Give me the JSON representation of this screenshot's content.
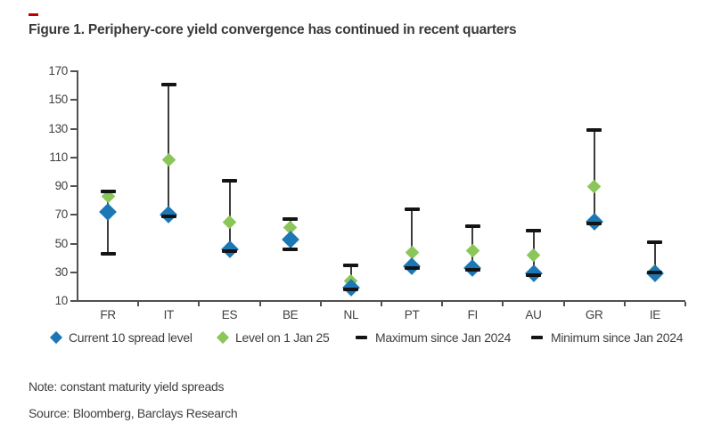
{
  "figure": {
    "brand_mark_color": "#c00000",
    "title": "Figure 1. Periphery-core yield convergence has continued in recent quarters",
    "note": "Note: constant maturity yield spreads",
    "source": "Source: Bloomberg, Barclays Research"
  },
  "colors": {
    "current_blue": "#1b78b5",
    "jan25_green": "#8bc65a",
    "range_black": "#141414",
    "axis_gray": "#515151",
    "text_gray": "#3f3f3f"
  },
  "legend": {
    "items": [
      {
        "label": "Current 10 spread level",
        "marker": "diamond",
        "color": "#1b78b5"
      },
      {
        "label": "Level on 1 Jan 25",
        "marker": "diamond",
        "color": "#8bc65a"
      },
      {
        "label": "Maximum since Jan 2024",
        "marker": "dash",
        "color": "#141414"
      },
      {
        "label": "Minimum since Jan 2024",
        "marker": "dash",
        "color": "#141414"
      }
    ]
  },
  "chart_data": {
    "type": "scatter",
    "subtype": "range-dot",
    "title": "Figure 1. Periphery-core yield convergence has continued in recent quarters",
    "categories": [
      "FR",
      "IT",
      "ES",
      "BE",
      "NL",
      "PT",
      "FI",
      "AU",
      "GR",
      "IE"
    ],
    "series": [
      {
        "name": "Current 10 spread level",
        "marker": "diamond",
        "color": "#1b78b5",
        "values": [
          72,
          70,
          46,
          53,
          19,
          34,
          33,
          29,
          65,
          29
        ]
      },
      {
        "name": "Level on 1 Jan 25",
        "marker": "diamond",
        "color": "#8bc65a",
        "values": [
          83,
          108,
          65,
          61,
          24,
          44,
          45,
          42,
          90,
          31
        ]
      },
      {
        "name": "Maximum since Jan 2024",
        "marker": "dash",
        "color": "#141414",
        "values": [
          86,
          161,
          94,
          67,
          35,
          74,
          62,
          59,
          129,
          51
        ]
      },
      {
        "name": "Minimum since Jan 2024",
        "marker": "dash",
        "color": "#141414",
        "values": [
          43,
          69,
          45,
          46,
          18,
          33,
          32,
          28,
          64,
          30
        ]
      }
    ],
    "xlabel": "",
    "ylabel": "",
    "ylim": [
      10,
      170
    ],
    "yticks": [
      10,
      30,
      50,
      70,
      90,
      110,
      130,
      150,
      170
    ],
    "grid": false,
    "legend_position": "bottom"
  }
}
